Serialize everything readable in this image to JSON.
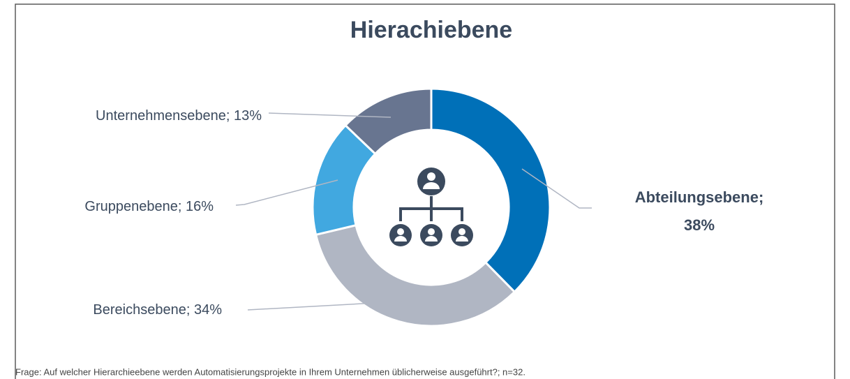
{
  "chart_data": {
    "type": "donut",
    "title": "Hierachiebene",
    "categories": [
      "Abteilungsebene;",
      "Bereichsebene;",
      "Gruppenebene;",
      "Unternehmensebene;"
    ],
    "values": [
      38,
      34,
      16,
      13
    ],
    "value_labels": [
      "38%",
      "34%",
      "16%",
      "13%"
    ],
    "colors": [
      "#0070b8",
      "#b0b6c3",
      "#41a8e0",
      "#687590"
    ],
    "footnote": "Frage: Auf welcher Hierarchieebene werden Automatisierungsprojekte in Ihrem Unternehmen üblicherweise ausgeführt?; n=32."
  }
}
